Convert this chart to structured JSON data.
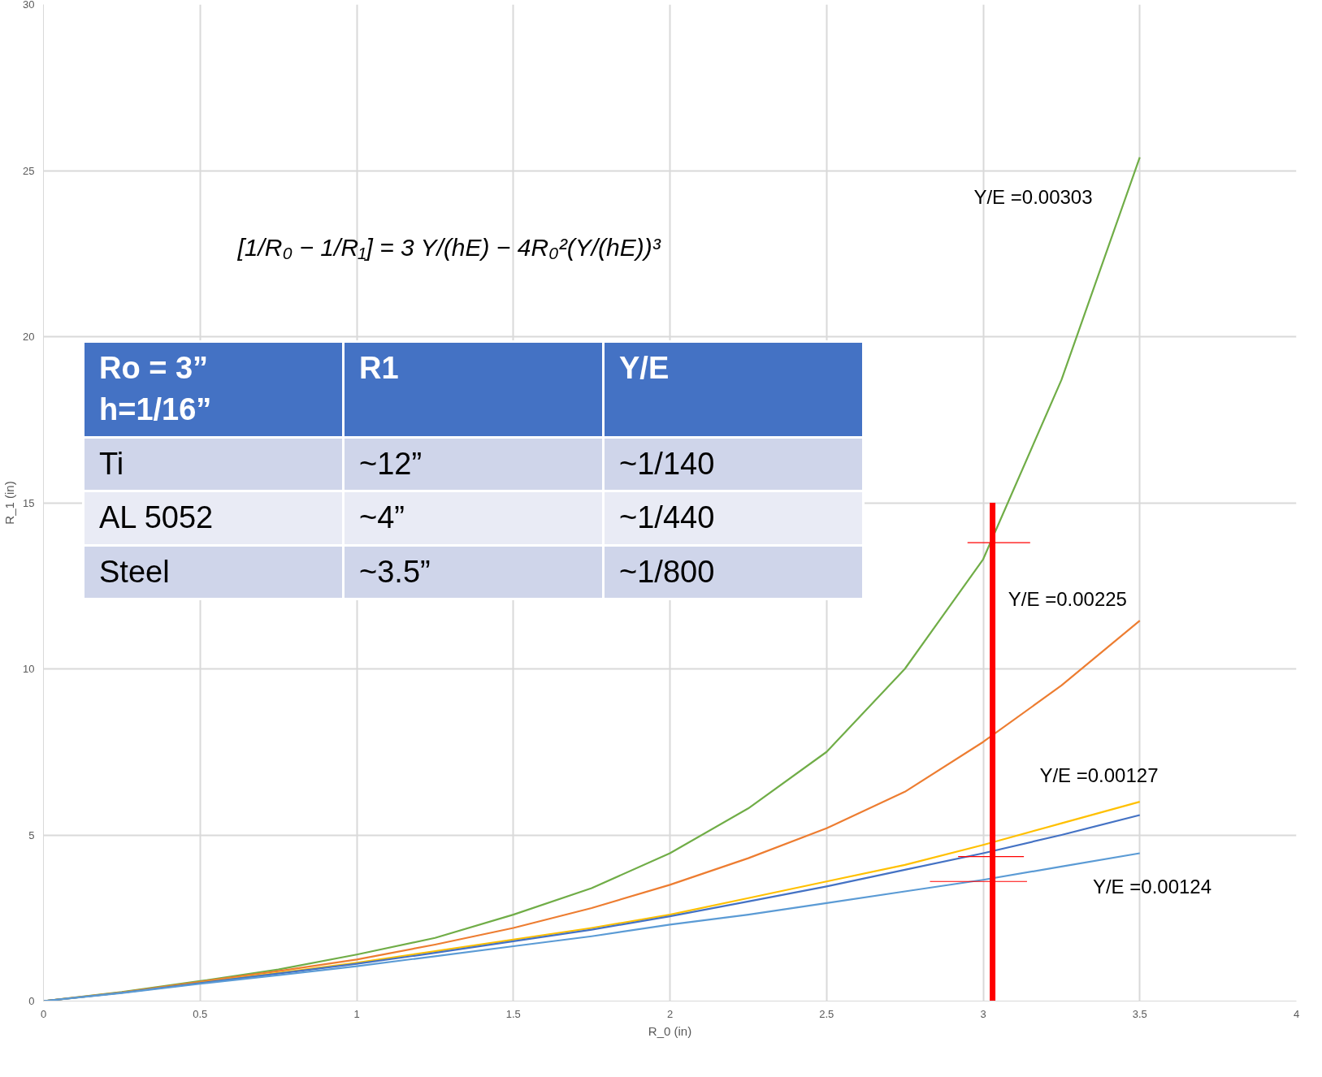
{
  "chart_data": {
    "type": "line",
    "xlabel": "R_0 (in)",
    "ylabel": "R_1 (in)",
    "xlim": [
      0,
      4
    ],
    "ylim": [
      0,
      30
    ],
    "xticks": [
      0,
      0.5,
      1,
      1.5,
      2,
      2.5,
      3,
      3.5,
      4
    ],
    "yticks": [
      0,
      5,
      10,
      15,
      20,
      25,
      30
    ],
    "grid": true,
    "marker": "none",
    "line_style": "solid",
    "x": [
      0,
      0.25,
      0.5,
      0.75,
      1,
      1.25,
      1.5,
      1.75,
      2,
      2.25,
      2.5,
      2.75,
      3,
      3.25,
      3.5
    ],
    "series": [
      {
        "color": "#70ad47",
        "values": [
          0,
          0.27,
          0.6,
          0.95,
          1.4,
          1.9,
          2.6,
          3.4,
          4.45,
          5.8,
          7.5,
          10,
          13.3,
          18.7,
          25.4
        ]
      },
      {
        "color": "#ed7d31",
        "values": [
          0,
          0.26,
          0.58,
          0.9,
          1.25,
          1.7,
          2.2,
          2.8,
          3.5,
          4.3,
          5.2,
          6.3,
          7.8,
          9.5,
          11.45
        ]
      },
      {
        "color": "#ffc000",
        "values": [
          0,
          0.25,
          0.55,
          0.85,
          1.15,
          1.5,
          1.85,
          2.2,
          2.6,
          3.1,
          3.6,
          4.1,
          4.7,
          5.35,
          6.0
        ]
      },
      {
        "color": "#4472c4",
        "values": [
          0,
          0.25,
          0.54,
          0.83,
          1.12,
          1.45,
          1.8,
          2.15,
          2.55,
          3.0,
          3.45,
          3.95,
          4.45,
          5.0,
          5.6
        ]
      },
      {
        "color": "#5b9bd5",
        "values": [
          0,
          0.24,
          0.52,
          0.78,
          1.05,
          1.35,
          1.65,
          1.95,
          2.3,
          2.6,
          2.95,
          3.3,
          3.65,
          4.05,
          4.45
        ]
      },
      {
        "color": "#ff0000",
        "x": [
          3.03,
          3.03
        ],
        "values": [
          0,
          15
        ]
      },
      {
        "color": "#ff0000",
        "x": [
          2.95,
          3.15
        ],
        "values": [
          13.8,
          13.8
        ]
      },
      {
        "color": "#ff0000",
        "x": [
          2.92,
          3.13
        ],
        "values": [
          4.35,
          4.35
        ]
      },
      {
        "color": "#ff0000",
        "x": [
          2.83,
          3.14
        ],
        "values": [
          3.6,
          3.6
        ]
      }
    ],
    "annotations": [
      "[1/R₀ − 1/R₁] = 3 Y/(hE) − 4R₀²(Y/(hE))³",
      "Ro = 3”\nh=1/16”",
      "R1",
      "Y/E",
      "Ti",
      "~12”",
      "~1/140",
      "AL 5052",
      "~4”",
      "~1/440",
      "Steel",
      "~3.5”",
      "~1/800",
      "Y/E =0.00303",
      "Y/E =0.00225",
      "Y/E =0.00127",
      "Y/E =0.00124"
    ]
  }
}
